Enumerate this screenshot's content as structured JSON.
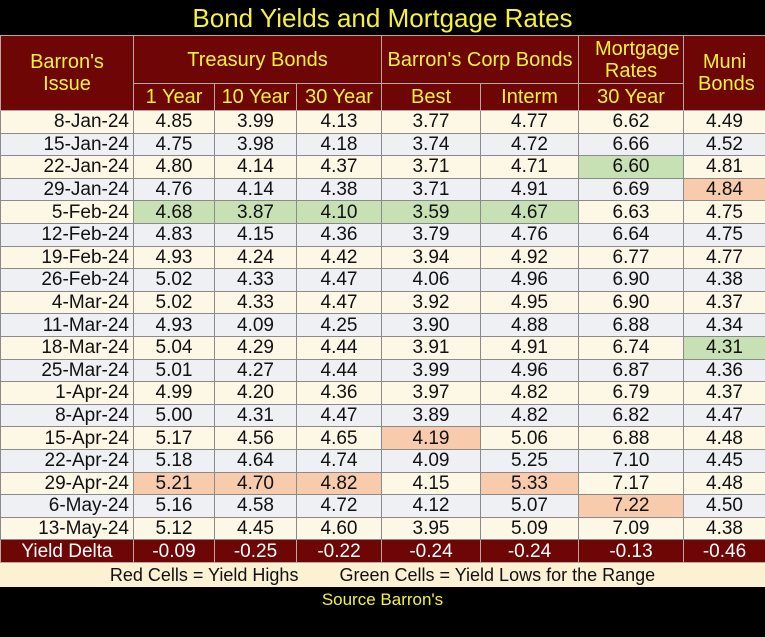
{
  "title": "Bond Yields and Mortgage Rates",
  "header": {
    "issue": "Barron's Issue",
    "treasury": "Treasury Bonds",
    "corp": "Barron's Corp Bonds",
    "mortgage": "Mortgage Rates",
    "muni": "Muni Bonds",
    "sub": [
      "1 Year",
      "10 Year",
      "30 Year",
      "Best",
      "Interm",
      "30 Year"
    ]
  },
  "chart_data": {
    "type": "table",
    "title": "Bond Yields and Mortgage Rates",
    "columns": [
      "Barron's Issue",
      "Treasury 1 Year",
      "Treasury 10 Year",
      "Treasury 30 Year",
      "Corp Best",
      "Corp Interm",
      "Mortgage 30 Year",
      "Muni Bonds"
    ],
    "rows": [
      {
        "date": "8-Jan-24",
        "values": [
          "4.85",
          "3.99",
          "4.13",
          "3.77",
          "4.77",
          "6.62",
          "4.49"
        ],
        "marks": [
          "",
          "",
          "",
          "",
          "",
          "",
          ""
        ]
      },
      {
        "date": "15-Jan-24",
        "values": [
          "4.75",
          "3.98",
          "4.18",
          "3.74",
          "4.72",
          "6.66",
          "4.52"
        ],
        "marks": [
          "",
          "",
          "",
          "",
          "",
          "",
          ""
        ]
      },
      {
        "date": "22-Jan-24",
        "values": [
          "4.80",
          "4.14",
          "4.37",
          "3.71",
          "4.71",
          "6.60",
          "4.81"
        ],
        "marks": [
          "",
          "",
          "",
          "",
          "",
          "low",
          ""
        ]
      },
      {
        "date": "29-Jan-24",
        "values": [
          "4.76",
          "4.14",
          "4.38",
          "3.71",
          "4.91",
          "6.69",
          "4.84"
        ],
        "marks": [
          "",
          "",
          "",
          "",
          "",
          "",
          "high"
        ]
      },
      {
        "date": "5-Feb-24",
        "values": [
          "4.68",
          "3.87",
          "4.10",
          "3.59",
          "4.67",
          "6.63",
          "4.75"
        ],
        "marks": [
          "low",
          "low",
          "low",
          "low",
          "low",
          "",
          ""
        ]
      },
      {
        "date": "12-Feb-24",
        "values": [
          "4.83",
          "4.15",
          "4.36",
          "3.79",
          "4.76",
          "6.64",
          "4.75"
        ],
        "marks": [
          "",
          "",
          "",
          "",
          "",
          "",
          ""
        ]
      },
      {
        "date": "19-Feb-24",
        "values": [
          "4.93",
          "4.24",
          "4.42",
          "3.94",
          "4.92",
          "6.77",
          "4.77"
        ],
        "marks": [
          "",
          "",
          "",
          "",
          "",
          "",
          ""
        ]
      },
      {
        "date": "26-Feb-24",
        "values": [
          "5.02",
          "4.33",
          "4.47",
          "4.06",
          "4.96",
          "6.90",
          "4.38"
        ],
        "marks": [
          "",
          "",
          "",
          "",
          "",
          "",
          ""
        ]
      },
      {
        "date": "4-Mar-24",
        "values": [
          "5.02",
          "4.33",
          "4.47",
          "3.92",
          "4.95",
          "6.90",
          "4.37"
        ],
        "marks": [
          "",
          "",
          "",
          "",
          "",
          "",
          ""
        ]
      },
      {
        "date": "11-Mar-24",
        "values": [
          "4.93",
          "4.09",
          "4.25",
          "3.90",
          "4.88",
          "6.88",
          "4.34"
        ],
        "marks": [
          "",
          "",
          "",
          "",
          "",
          "",
          ""
        ]
      },
      {
        "date": "18-Mar-24",
        "values": [
          "5.04",
          "4.29",
          "4.44",
          "3.91",
          "4.91",
          "6.74",
          "4.31"
        ],
        "marks": [
          "",
          "",
          "",
          "",
          "",
          "",
          "low"
        ]
      },
      {
        "date": "25-Mar-24",
        "values": [
          "5.01",
          "4.27",
          "4.44",
          "3.99",
          "4.96",
          "6.87",
          "4.36"
        ],
        "marks": [
          "",
          "",
          "",
          "",
          "",
          "",
          ""
        ]
      },
      {
        "date": "1-Apr-24",
        "values": [
          "4.99",
          "4.20",
          "4.36",
          "3.97",
          "4.82",
          "6.79",
          "4.37"
        ],
        "marks": [
          "",
          "",
          "",
          "",
          "",
          "",
          ""
        ]
      },
      {
        "date": "8-Apr-24",
        "values": [
          "5.00",
          "4.31",
          "4.47",
          "3.89",
          "4.82",
          "6.82",
          "4.47"
        ],
        "marks": [
          "",
          "",
          "",
          "",
          "",
          "",
          ""
        ]
      },
      {
        "date": "15-Apr-24",
        "values": [
          "5.17",
          "4.56",
          "4.65",
          "4.19",
          "5.06",
          "6.88",
          "4.48"
        ],
        "marks": [
          "",
          "",
          "",
          "high",
          "",
          "",
          ""
        ]
      },
      {
        "date": "22-Apr-24",
        "values": [
          "5.18",
          "4.64",
          "4.74",
          "4.09",
          "5.25",
          "7.10",
          "4.45"
        ],
        "marks": [
          "",
          "",
          "",
          "",
          "",
          "",
          ""
        ]
      },
      {
        "date": "29-Apr-24",
        "values": [
          "5.21",
          "4.70",
          "4.82",
          "4.15",
          "5.33",
          "7.17",
          "4.48"
        ],
        "marks": [
          "high",
          "high",
          "high",
          "",
          "high",
          "",
          ""
        ]
      },
      {
        "date": "6-May-24",
        "values": [
          "5.16",
          "4.58",
          "4.72",
          "4.12",
          "5.07",
          "7.22",
          "4.50"
        ],
        "marks": [
          "",
          "",
          "",
          "",
          "",
          "high",
          ""
        ]
      },
      {
        "date": "13-May-24",
        "values": [
          "5.12",
          "4.45",
          "4.60",
          "3.95",
          "5.09",
          "7.09",
          "4.38"
        ],
        "marks": [
          "",
          "",
          "",
          "",
          "",
          "",
          ""
        ]
      }
    ],
    "delta": {
      "label": "Yield Delta",
      "values": [
        "-0.09",
        "-0.25",
        "-0.22",
        "-0.24",
        "-0.24",
        "-0.13",
        "-0.46"
      ]
    }
  },
  "legend": {
    "red": "Red Cells = Yield Highs",
    "green": "Green Cells = Yield Lows for the Range"
  },
  "source": "Source Barron's",
  "colors": {
    "header": "#6e0606",
    "title": "#f4f23a",
    "high": "#f7cbac",
    "low": "#c7e0b4"
  }
}
